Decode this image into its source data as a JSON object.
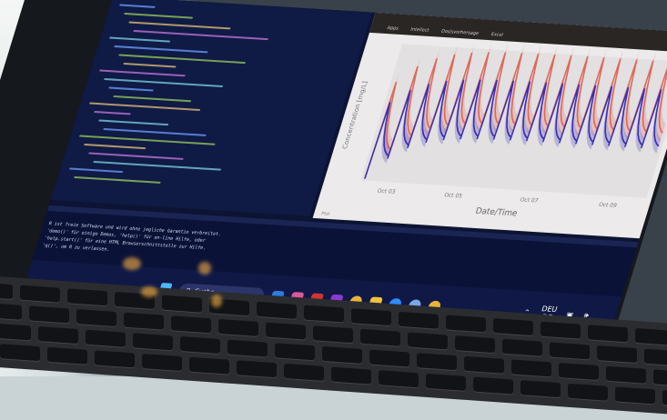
{
  "chart": {
    "browser_tabs": [
      "Apps",
      "Intellect",
      "Dosisvorhersage",
      "Excel"
    ],
    "ylabel": "Concentration [mg/L]",
    "xlabel": "Date/Time",
    "x_ticks": [
      "Oct 03",
      "Oct 05",
      "Oct 07",
      "Oct 09"
    ],
    "footer": "Plot",
    "colors": {
      "series_a": "#e0685a",
      "series_b": "#3a2fb8"
    }
  },
  "chart_data": {
    "type": "line",
    "xlabel": "Date/Time",
    "ylabel": "Concentration [mg/L]",
    "x_tick_labels": [
      "Oct 03",
      "Oct 05",
      "Oct 07",
      "Oct 09"
    ],
    "series": [
      {
        "values": []
      },
      {
        "values": []
      }
    ],
    "note_shape": "repeated dosing sawtooth with shaded bands"
  },
  "console": {
    "lines": [
      "R ist freie Software und wird ohne jegliche Garantie verbreitet.",
      "'demo()' für einige Demos, 'help()' für on-line Hilfe, oder",
      "'help.start()' für eine HTML Browserschnittstelle zur Hilfe.",
      "'q()', um R zu verlassen."
    ]
  },
  "taskbar": {
    "search_label": "Suche",
    "apps": [
      "outlook",
      "copilot",
      "zotero",
      "onenote",
      "chrome",
      "explorer",
      "zoom",
      "teams",
      "chrome"
    ],
    "app_colors": [
      "#2d7be0",
      "#d9599b",
      "#d23434",
      "#8c3ad0",
      "#e8b23a",
      "#f2c23a",
      "#2d8cff",
      "#7aa7e6",
      "#e8b23a"
    ],
    "lang_top": "DEU",
    "lang_bottom": "DE"
  }
}
